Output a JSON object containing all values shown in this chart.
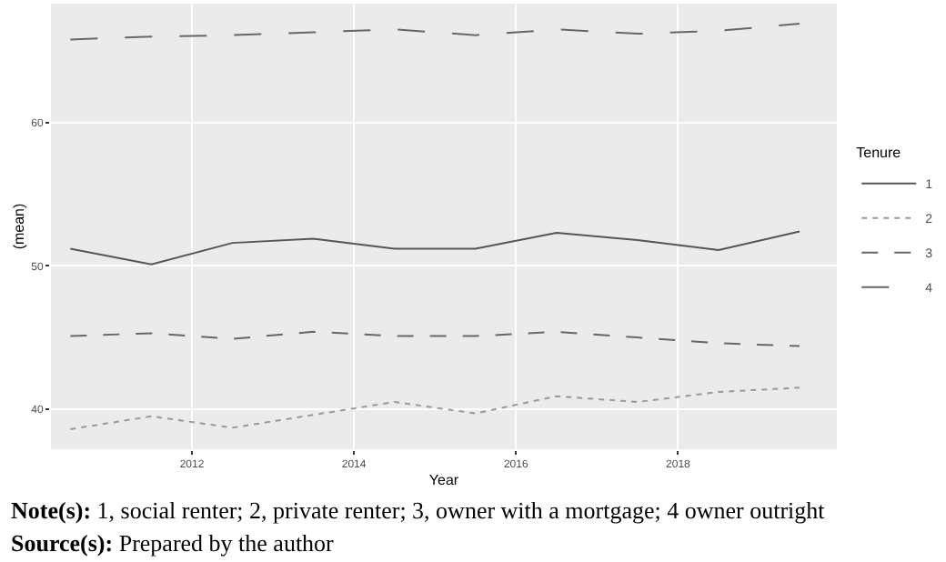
{
  "chart_data": {
    "type": "line",
    "xlabel": "Year",
    "ylabel": "(mean)",
    "legend_title": "Tenure",
    "x": [
      2010.5,
      2011.5,
      2012.5,
      2013.5,
      2014.5,
      2015.5,
      2016.5,
      2017.5,
      2018.5,
      2019.5
    ],
    "series": [
      {
        "name": "1",
        "color": "#555555",
        "line_style": "solid",
        "values": [
          51.2,
          50.1,
          51.6,
          51.9,
          51.2,
          51.2,
          52.3,
          51.8,
          51.1,
          52.4
        ]
      },
      {
        "name": "2",
        "color": "#999999",
        "line_style": "dotted",
        "values": [
          38.6,
          39.5,
          38.7,
          39.6,
          40.5,
          39.7,
          40.9,
          40.5,
          41.2,
          41.5
        ]
      },
      {
        "name": "3",
        "color": "#666666",
        "line_style": "dashed",
        "values": [
          45.1,
          45.3,
          44.9,
          45.4,
          45.1,
          45.1,
          45.4,
          45.0,
          44.6,
          44.4
        ]
      },
      {
        "name": "4",
        "color": "#666666",
        "line_style": "dashed",
        "values": [
          65.8,
          66.0,
          66.1,
          66.3,
          66.5,
          66.1,
          66.5,
          66.2,
          66.4,
          66.9
        ]
      }
    ],
    "xlim": [
      2010.26,
      2019.96
    ],
    "xticks": [
      2012,
      2014,
      2016,
      2018
    ],
    "ylim": [
      37.2,
      68.3
    ],
    "yticks": [
      40,
      50,
      60
    ],
    "grid": true,
    "legend": "right",
    "marker": "none",
    "annotations": [
      "Note(s): 1, social renter; 2, private renter; 3, owner with a mortgage; 4 owner outright",
      "Source(s): Prepared by the author"
    ]
  }
}
